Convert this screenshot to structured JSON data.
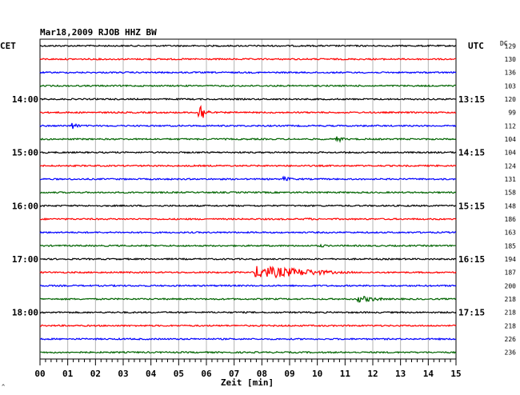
{
  "chart_data": {
    "type": "line",
    "title": "Mar18,2009   RJOB HHZ BW",
    "left_label": "CET",
    "right_label": "UTC",
    "dc_label": "DC",
    "xlabel": "Zeit [min]",
    "xlim": [
      0,
      15
    ],
    "x_ticks": [
      "00",
      "01",
      "02",
      "03",
      "04",
      "05",
      "06",
      "07",
      "08",
      "09",
      "10",
      "11",
      "12",
      "13",
      "14",
      "15"
    ],
    "rows": 24,
    "row_colors": [
      "#000000",
      "#ff0000",
      "#0000ff",
      "#006400"
    ],
    "cet_labels": [
      {
        "row": 4,
        "text": "14:00"
      },
      {
        "row": 8,
        "text": "15:00"
      },
      {
        "row": 12,
        "text": "16:00"
      },
      {
        "row": 16,
        "text": "17:00"
      },
      {
        "row": 20,
        "text": "18:00"
      }
    ],
    "utc_labels": [
      {
        "row": 4,
        "text": "13:15"
      },
      {
        "row": 8,
        "text": "14:15"
      },
      {
        "row": 12,
        "text": "15:15"
      },
      {
        "row": 16,
        "text": "16:15"
      },
      {
        "row": 20,
        "text": "17:15"
      }
    ],
    "dc_values": [
      "129",
      "130",
      "136",
      "103",
      "120",
      "99",
      "112",
      "104",
      "104",
      "124",
      "131",
      "158",
      "148",
      "186",
      "163",
      "185",
      "194",
      "187",
      "200",
      "218",
      "218",
      "218",
      "226",
      "236"
    ],
    "events": [
      {
        "row": 5,
        "minute": 5.75,
        "amplitude": 12,
        "duration": 0.4
      },
      {
        "row": 6,
        "minute": 1.2,
        "amplitude": 4,
        "duration": 0.3
      },
      {
        "row": 7,
        "minute": 10.7,
        "amplitude": 4,
        "duration": 0.4
      },
      {
        "row": 10,
        "minute": 8.8,
        "amplitude": 3,
        "duration": 0.5
      },
      {
        "row": 13,
        "minute": 9.6,
        "amplitude": 2,
        "duration": 0.4
      },
      {
        "row": 15,
        "minute": 10.1,
        "amplitude": 2,
        "duration": 0.5
      },
      {
        "row": 17,
        "minute": 7.8,
        "amplitude": 8,
        "duration": 3.5
      },
      {
        "row": 19,
        "minute": 11.5,
        "amplitude": 4,
        "duration": 1.2
      }
    ]
  }
}
